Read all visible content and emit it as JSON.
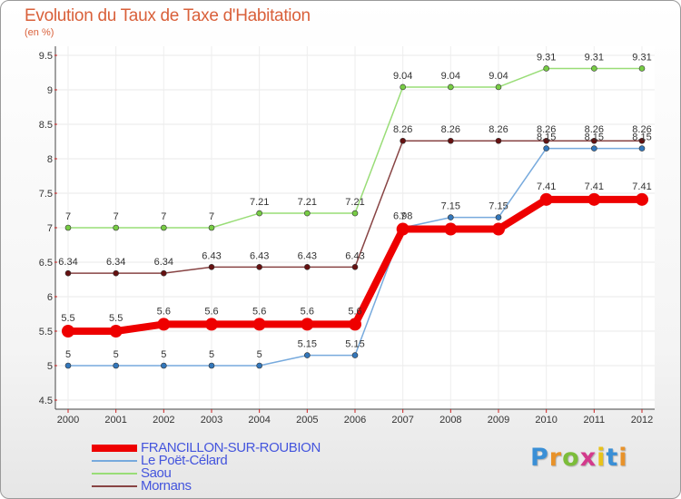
{
  "title": "Evolution du Taux de Taxe d'Habitation",
  "unit_label": "(en %)",
  "logo": {
    "letters": [
      "P",
      "r",
      "o",
      "x",
      "i",
      "t",
      "i"
    ],
    "colors": [
      "#3a8fd6",
      "#e8922a",
      "#7cbd3a",
      "#d33a8c",
      "#e8c21a",
      "#3a8fd6",
      "#e8922a"
    ]
  },
  "chart_data": {
    "type": "line",
    "title": "Evolution du Taux de Taxe d'Habitation",
    "ylabel": "(en %)",
    "xlabel": "",
    "ylim": [
      4.5,
      9.5
    ],
    "yticks": [
      "4.5",
      "5",
      "5.5",
      "6",
      "6.5",
      "7",
      "7.5",
      "8",
      "8.5",
      "9",
      "9.5"
    ],
    "x": [
      "2000",
      "2001",
      "2002",
      "2003",
      "2004",
      "2005",
      "2006",
      "2007",
      "2008",
      "2009",
      "2010",
      "2011",
      "2012"
    ],
    "grid": true,
    "series": [
      {
        "name": "Saou",
        "color": "#99dd77",
        "marker": "#77cc44",
        "values": [
          7,
          7,
          7,
          7,
          7.21,
          7.21,
          7.21,
          9.04,
          9.04,
          9.04,
          9.31,
          9.31,
          9.31
        ],
        "labels": [
          "7",
          "7",
          "7",
          "7",
          "7.21",
          "7.21",
          "7.21",
          "9.04",
          "9.04",
          "9.04",
          "9.31",
          "9.31",
          "9.31"
        ]
      },
      {
        "name": "Mornans",
        "color": "#884444",
        "marker": "#661111",
        "values": [
          6.34,
          6.34,
          6.34,
          6.43,
          6.43,
          6.43,
          6.43,
          8.26,
          8.26,
          8.26,
          8.26,
          8.26,
          8.26
        ],
        "labels": [
          "6.34",
          "6.34",
          "6.34",
          "6.43",
          "6.43",
          "6.43",
          "6.43",
          "8.26",
          "8.26",
          "8.26",
          "8.26",
          "8.26",
          "8.26"
        ]
      },
      {
        "name": "Le Poët-Célard",
        "color": "#77aadd",
        "marker": "#3377bb",
        "values": [
          5,
          5,
          5,
          5,
          5,
          5.15,
          5.15,
          7,
          7.15,
          7.15,
          8.15,
          8.15,
          8.15
        ],
        "labels": [
          "5",
          "5",
          "5",
          "5",
          "5",
          "5.15",
          "5.15",
          "7",
          "7.15",
          "7.15",
          "8.15",
          "8.15",
          "8.15"
        ]
      },
      {
        "name": "FRANCILLON-SUR-ROUBION",
        "color": "#ee0000",
        "marker": "#ee0000",
        "values": [
          5.5,
          5.5,
          5.6,
          5.6,
          5.6,
          5.6,
          5.6,
          6.98,
          6.98,
          6.98,
          7.41,
          7.41,
          7.41
        ],
        "labels": [
          "5.5",
          "5.5",
          "5.6",
          "5.6",
          "5.6",
          "5.6",
          "5.6",
          "6.98",
          "",
          "",
          "7.41",
          "7.41",
          "7.41"
        ],
        "bold": true
      }
    ],
    "legend": [
      "FRANCILLON-SUR-ROUBION",
      "Le Poët-Célard",
      "Saou",
      "Mornans"
    ],
    "legend_position": "bottom-left"
  }
}
